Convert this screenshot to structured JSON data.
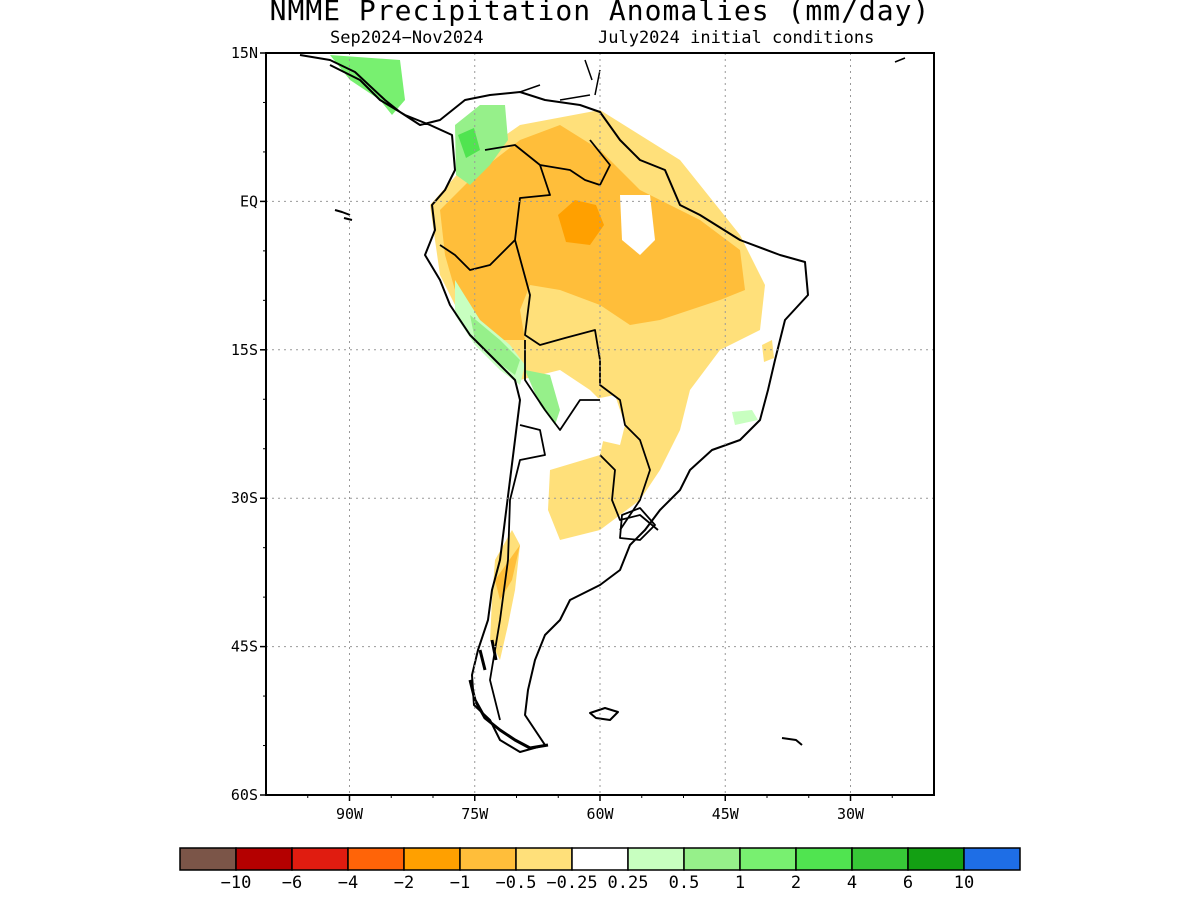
{
  "title": "NMME Precipitation Anomalies (mm/day)",
  "season": "Sep2024−Nov2024",
  "initial_conditions": "July2024 initial conditions",
  "map": {
    "lon_range": [
      -100,
      -20
    ],
    "lat_range": [
      -60,
      15
    ],
    "grid": "dotted",
    "lat_ticks": [
      {
        "value": 15,
        "label": "15N"
      },
      {
        "value": 0,
        "label": "EQ"
      },
      {
        "value": -15,
        "label": "15S"
      },
      {
        "value": -30,
        "label": "30S"
      },
      {
        "value": -45,
        "label": "45S"
      },
      {
        "value": -60,
        "label": "60S"
      }
    ],
    "lon_ticks": [
      {
        "value": -90,
        "label": "90W"
      },
      {
        "value": -75,
        "label": "75W"
      },
      {
        "value": -60,
        "label": "60W"
      },
      {
        "value": -45,
        "label": "45W"
      },
      {
        "value": -30,
        "label": "30W"
      }
    ]
  },
  "colorbar": {
    "colors": [
      "#7b5548",
      "#b40000",
      "#e01c10",
      "#ff6408",
      "#ffa000",
      "#ffbe3a",
      "#ffe07a",
      "#ffffff",
      "#c8ffc0",
      "#96f08a",
      "#78f070",
      "#50e450",
      "#37c837",
      "#13a013",
      "#1e6ee6"
    ],
    "labels": [
      "−10",
      "−6",
      "−4",
      "−2",
      "−1",
      "−0.5",
      "−0.25",
      "0.25",
      "0.5",
      "1",
      "2",
      "4",
      "6",
      "10"
    ]
  },
  "anomaly_regions": [
    {
      "level": "-0.5 to -0.25",
      "color": "#ffe07a"
    },
    {
      "level": "-1 to -0.5",
      "color": "#ffbe3a"
    },
    {
      "level": "-2 to -1",
      "color": "#ffa000"
    },
    {
      "level": "0.25 to 0.5",
      "color": "#c8ffc0"
    },
    {
      "level": "0.5 to 1",
      "color": "#96f08a"
    },
    {
      "level": "1 to 2",
      "color": "#78f070"
    },
    {
      "level": "2 to 4",
      "color": "#50e450"
    }
  ]
}
